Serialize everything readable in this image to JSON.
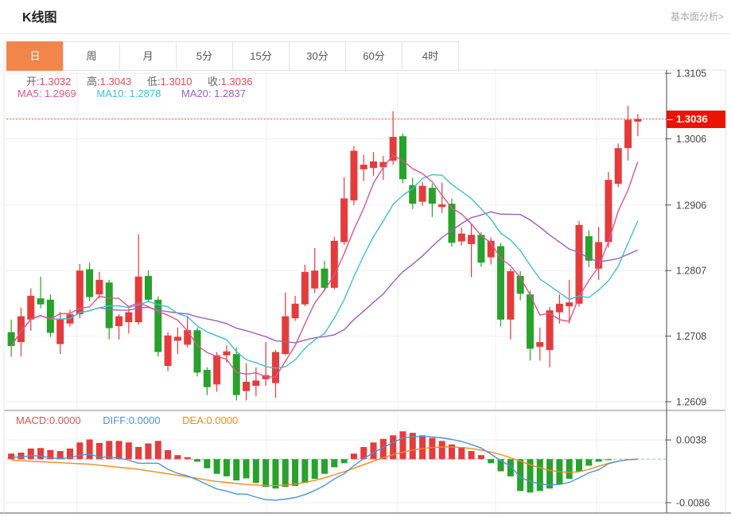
{
  "header": {
    "title": "K线图",
    "link": "基本面分析>"
  },
  "tabs": [
    {
      "label": "日",
      "name": "tab-day",
      "active": true
    },
    {
      "label": "周",
      "name": "tab-week",
      "active": false
    },
    {
      "label": "月",
      "name": "tab-month",
      "active": false
    },
    {
      "label": "5分",
      "name": "tab-5min",
      "active": false
    },
    {
      "label": "15分",
      "name": "tab-15min",
      "active": false
    },
    {
      "label": "30分",
      "name": "tab-30min",
      "active": false
    },
    {
      "label": "60分",
      "name": "tab-60min",
      "active": false
    },
    {
      "label": "4时",
      "name": "tab-4hour",
      "active": false
    }
  ],
  "legend": {
    "open_label": "开:",
    "open": "1.3032",
    "high_label": "高:",
    "high": "1.3043",
    "low_label": "低:",
    "low": "1.3010",
    "close_label": "收:",
    "close": "1.3036",
    "ma5_label": "MA5:",
    "ma5": "1.2969",
    "ma10_label": "MA10:",
    "ma10": "1.2878",
    "ma20_label": "MA20:",
    "ma20": "1.2837"
  },
  "macd_legend": {
    "macd_label": "MACD:",
    "macd": "0.0000",
    "diff_label": "DIFF:",
    "diff": "0.0000",
    "dea_label": "DEA:",
    "dea": "0.0000"
  },
  "axis": {
    "price_ticks": [
      {
        "label": "1.3105",
        "value": 1.3105
      },
      {
        "label": "1.3006",
        "value": 1.3006
      },
      {
        "label": "1.2906",
        "value": 1.2906
      },
      {
        "label": "1.2807",
        "value": 1.2807
      },
      {
        "label": "1.2708",
        "value": 1.2708
      },
      {
        "label": "1.2609",
        "value": 1.2609
      }
    ],
    "macd_ticks": [
      {
        "label": "0.0038",
        "value": 0.0038
      },
      {
        "label": "-0.0086",
        "value": -0.0086
      }
    ],
    "last_price_label": "1.3036",
    "last_price": 1.3036
  },
  "colors": {
    "up": "#e43c3d",
    "down": "#27a22b",
    "ma5": "#e1548e",
    "ma10": "#3fc0d2",
    "ma20": "#9e5ec2",
    "diff_line": "#4b94d8",
    "dea_line": "#f08c1e",
    "price_tag": "#ec1400",
    "dotted_line": "#ff4a3c",
    "zero_dash": "#9ec1c9",
    "grid": "#efefef",
    "axis_line": "#666666",
    "tab_active": "#f2854b"
  },
  "chart_data": {
    "type": "candlestick",
    "panels": [
      "price",
      "macd"
    ],
    "grid": true,
    "legend_position": "top-left",
    "price_ylim": [
      1.2597,
      1.311
    ],
    "ma_periods": [
      5,
      10,
      20
    ],
    "candle_format": [
      "open",
      "close",
      "high",
      "low"
    ],
    "candles": [
      [
        1.2714,
        1.2693,
        1.2733,
        1.2677
      ],
      [
        1.2699,
        1.2738,
        1.2751,
        1.2677
      ],
      [
        1.2733,
        1.2769,
        1.278,
        1.2716
      ],
      [
        1.2765,
        1.2756,
        1.2798,
        1.275
      ],
      [
        1.2763,
        1.2713,
        1.2771,
        1.2707
      ],
      [
        1.2696,
        1.2733,
        1.2745,
        1.2681
      ],
      [
        1.2727,
        1.2741,
        1.2748,
        1.2722
      ],
      [
        1.2741,
        1.2807,
        1.2817,
        1.2735
      ],
      [
        1.2809,
        1.2767,
        1.2819,
        1.2761
      ],
      [
        1.2771,
        1.2793,
        1.2805,
        1.2765
      ],
      [
        1.2789,
        1.272,
        1.2793,
        1.2703
      ],
      [
        1.2723,
        1.2738,
        1.2741,
        1.2703
      ],
      [
        1.2729,
        1.2744,
        1.275,
        1.2712
      ],
      [
        1.2729,
        1.2798,
        1.2862,
        1.2725
      ],
      [
        1.2799,
        1.2763,
        1.2807,
        1.2759
      ],
      [
        1.2763,
        1.2684,
        1.2768,
        1.2677
      ],
      [
        1.2663,
        1.2709,
        1.2714,
        1.2655
      ],
      [
        1.2701,
        1.2707,
        1.2721,
        1.2681
      ],
      [
        1.2695,
        1.2717,
        1.2739,
        1.2691
      ],
      [
        1.2717,
        1.2653,
        1.2721,
        1.2647
      ],
      [
        1.2657,
        1.2631,
        1.2661,
        1.2619
      ],
      [
        1.2635,
        1.2679,
        1.2684,
        1.2624
      ],
      [
        1.2679,
        1.2685,
        1.2694,
        1.2668
      ],
      [
        1.2681,
        1.2619,
        1.2691,
        1.2611
      ],
      [
        1.2625,
        1.2639,
        1.2667,
        1.2611
      ],
      [
        1.2633,
        1.2641,
        1.2661,
        1.2617
      ],
      [
        1.2643,
        1.2649,
        1.2699,
        1.2633
      ],
      [
        1.2637,
        1.2684,
        1.2687,
        1.2615
      ],
      [
        1.2681,
        1.2738,
        1.2774,
        1.2679
      ],
      [
        1.2735,
        1.2757,
        1.2769,
        1.2731
      ],
      [
        1.2756,
        1.2805,
        1.2816,
        1.2753
      ],
      [
        1.278,
        1.2807,
        1.2841,
        1.2773
      ],
      [
        1.281,
        1.2781,
        1.2822,
        1.2776
      ],
      [
        1.2781,
        1.2852,
        1.2858,
        1.2778
      ],
      [
        1.285,
        1.2916,
        1.2948,
        1.2846
      ],
      [
        1.2913,
        1.2988,
        1.2995,
        1.2906
      ],
      [
        1.296,
        1.2967,
        1.2982,
        1.2942
      ],
      [
        1.2962,
        1.2972,
        1.2986,
        1.295
      ],
      [
        1.2963,
        1.2971,
        1.298,
        1.2944
      ],
      [
        1.2973,
        1.3009,
        1.3048,
        1.2967
      ],
      [
        1.301,
        1.2945,
        1.3014,
        1.2939
      ],
      [
        1.2936,
        1.2908,
        1.2947,
        1.29
      ],
      [
        1.2911,
        1.2935,
        1.2941,
        1.2905
      ],
      [
        1.2932,
        1.2908,
        1.2938,
        1.2888
      ],
      [
        1.2903,
        1.2907,
        1.294,
        1.2894
      ],
      [
        1.2908,
        1.2849,
        1.2916,
        1.2843
      ],
      [
        1.2851,
        1.2863,
        1.2872,
        1.2845
      ],
      [
        1.2847,
        1.2861,
        1.2877,
        1.2797
      ],
      [
        1.2861,
        1.2819,
        1.2865,
        1.2813
      ],
      [
        1.2827,
        1.2852,
        1.2857,
        1.2816
      ],
      [
        1.2844,
        1.2733,
        1.2849,
        1.2723
      ],
      [
        1.2733,
        1.2806,
        1.281,
        1.2703
      ],
      [
        1.2799,
        1.2772,
        1.2806,
        1.2762
      ],
      [
        1.2771,
        1.2689,
        1.2777,
        1.2671
      ],
      [
        1.2692,
        1.2699,
        1.2721,
        1.2671
      ],
      [
        1.2687,
        1.2747,
        1.2752,
        1.2661
      ],
      [
        1.2744,
        1.2757,
        1.2771,
        1.2727
      ],
      [
        1.2753,
        1.2759,
        1.2793,
        1.2727
      ],
      [
        1.2757,
        1.2876,
        1.2882,
        1.2753
      ],
      [
        1.2859,
        1.2822,
        1.2868,
        1.2812
      ],
      [
        1.281,
        1.285,
        1.2873,
        1.2793
      ],
      [
        1.285,
        1.2944,
        1.2956,
        1.2842
      ],
      [
        1.2938,
        1.2992,
        1.2999,
        1.2933
      ],
      [
        1.2992,
        1.3035,
        1.3056,
        1.2973
      ],
      [
        1.3032,
        1.3036,
        1.3043,
        1.301
      ]
    ],
    "macd": {
      "ylim": [
        -0.0108,
        0.009
      ],
      "histogram": [
        0.0011,
        0.0013,
        0.0021,
        0.0022,
        0.0018,
        0.0016,
        0.0021,
        0.0033,
        0.0039,
        0.0032,
        0.0036,
        0.0036,
        0.0033,
        0.0024,
        0.0031,
        0.0036,
        0.0018,
        0.0008,
        0.0004,
        -0.0005,
        -0.0018,
        -0.0029,
        -0.0034,
        -0.0042,
        -0.0038,
        -0.0047,
        -0.0055,
        -0.0058,
        -0.0055,
        -0.0053,
        -0.0047,
        -0.0039,
        -0.0029,
        -0.0016,
        -0.0008,
        0.0011,
        0.0024,
        0.0033,
        0.004,
        0.0047,
        0.0055,
        0.0052,
        0.0047,
        0.0042,
        0.0036,
        0.0029,
        0.0024,
        0.0016,
        0.0008,
        -0.0008,
        -0.0024,
        -0.0034,
        -0.0063,
        -0.0066,
        -0.0063,
        -0.0058,
        -0.005,
        -0.0039,
        -0.0024,
        -0.0013,
        -0.0005,
        -0.0002,
        0.0,
        0.0,
        0.0
      ],
      "diff": [
        0.0004,
        0.0004,
        0.0007,
        0.0006,
        0.0003,
        0.0001,
        0.0003,
        0.0008,
        0.001,
        0.0004,
        0.0004,
        0.0002,
        -0.0002,
        -0.0008,
        -0.0008,
        -0.0008,
        -0.002,
        -0.0028,
        -0.0033,
        -0.0041,
        -0.005,
        -0.0059,
        -0.0063,
        -0.0069,
        -0.0069,
        -0.0075,
        -0.008,
        -0.0081,
        -0.0079,
        -0.0076,
        -0.007,
        -0.0062,
        -0.0052,
        -0.0039,
        -0.0029,
        -0.0013,
        0.0001,
        0.0013,
        0.0023,
        0.0033,
        0.0042,
        0.0044,
        0.0045,
        0.0044,
        0.0042,
        0.0039,
        0.0035,
        0.0029,
        0.0022,
        0.001,
        -0.0003,
        -0.0014,
        -0.0036,
        -0.0044,
        -0.0049,
        -0.0051,
        -0.005,
        -0.0046,
        -0.0037,
        -0.0027,
        -0.0021,
        -0.0009,
        -0.0004,
        -0.0001,
        0.0
      ],
      "dea": [
        -0.0002,
        -0.0003,
        -0.0004,
        -0.0005,
        -0.0006,
        -0.0007,
        -0.0008,
        -0.0009,
        -0.001,
        -0.0012,
        -0.0014,
        -0.0016,
        -0.0018,
        -0.002,
        -0.0023,
        -0.0026,
        -0.0029,
        -0.0032,
        -0.0035,
        -0.0038,
        -0.0041,
        -0.0044,
        -0.0046,
        -0.0048,
        -0.005,
        -0.0051,
        -0.0052,
        -0.0052,
        -0.0051,
        -0.0049,
        -0.0046,
        -0.0042,
        -0.0037,
        -0.0031,
        -0.0025,
        -0.0018,
        -0.0011,
        -0.0004,
        0.0003,
        0.0009,
        0.0014,
        0.0018,
        0.0021,
        0.0023,
        0.0024,
        0.0024,
        0.0023,
        0.0021,
        0.0018,
        0.0014,
        0.0009,
        0.0003,
        -0.0004,
        -0.0011,
        -0.0017,
        -0.0022,
        -0.0025,
        -0.0026,
        -0.0025,
        -0.002,
        -0.0014,
        -0.0008,
        -0.0004,
        -0.0001,
        0.0
      ]
    },
    "vertical_gridlines_x": [
      97,
      335,
      500,
      623,
      750
    ]
  }
}
